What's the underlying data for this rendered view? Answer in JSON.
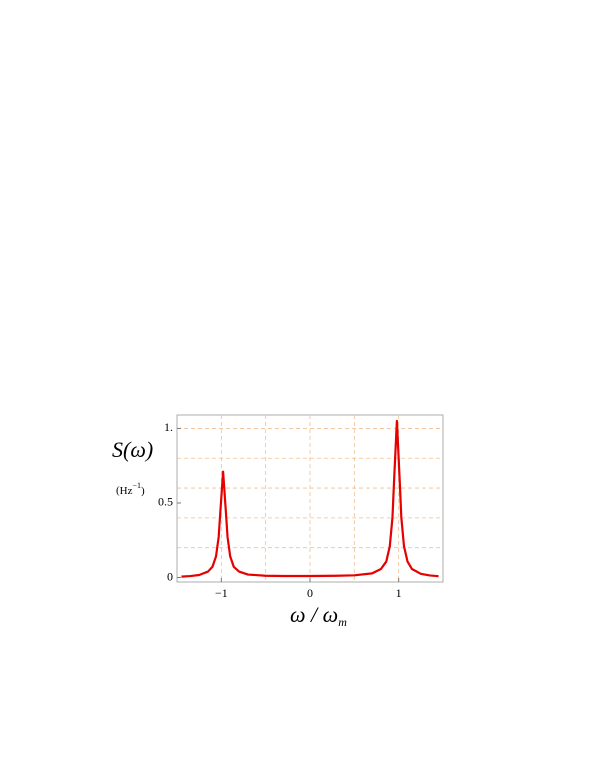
{
  "chart_data": {
    "type": "line",
    "y_label": "S(ω)",
    "y_unit_base": "Hz",
    "y_unit_exponent": "−1",
    "x_label": "ω / ω",
    "x_label_subscript": "m",
    "xlim": [
      -1.5,
      1.5
    ],
    "ylim": [
      -0.03,
      1.09
    ],
    "xticks": [
      {
        "value": -1,
        "label": "−1"
      },
      0,
      1
    ],
    "yticks": [
      0,
      0.5,
      {
        "value": 1,
        "label": "1."
      }
    ],
    "xgrid": [
      -1,
      -0.5,
      0,
      0.5,
      1
    ],
    "ygrid": [
      0.2,
      0.4,
      0.6,
      0.8,
      1
    ],
    "grid": true,
    "series": [
      {
        "color": "#e60000",
        "x": [
          -1.45,
          -1.35,
          -1.25,
          -1.15,
          -1.1,
          -1.06,
          -1.03,
          -1.01,
          -0.98,
          -0.95,
          -0.93,
          -0.9,
          -0.86,
          -0.8,
          -0.7,
          -0.5,
          -0.3,
          0,
          0.3,
          0.5,
          0.7,
          0.8,
          0.86,
          0.9,
          0.93,
          0.95,
          0.98,
          1.01,
          1.03,
          1.06,
          1.1,
          1.15,
          1.25,
          1.35,
          1.45
        ],
        "values": [
          0.006,
          0.01,
          0.017,
          0.04,
          0.072,
          0.142,
          0.272,
          0.452,
          0.71,
          0.452,
          0.272,
          0.142,
          0.072,
          0.04,
          0.02,
          0.012,
          0.01,
          0.01,
          0.012,
          0.015,
          0.028,
          0.057,
          0.107,
          0.21,
          0.402,
          0.672,
          1.05,
          0.672,
          0.402,
          0.21,
          0.107,
          0.057,
          0.025,
          0.014,
          0.009
        ]
      }
    ]
  }
}
